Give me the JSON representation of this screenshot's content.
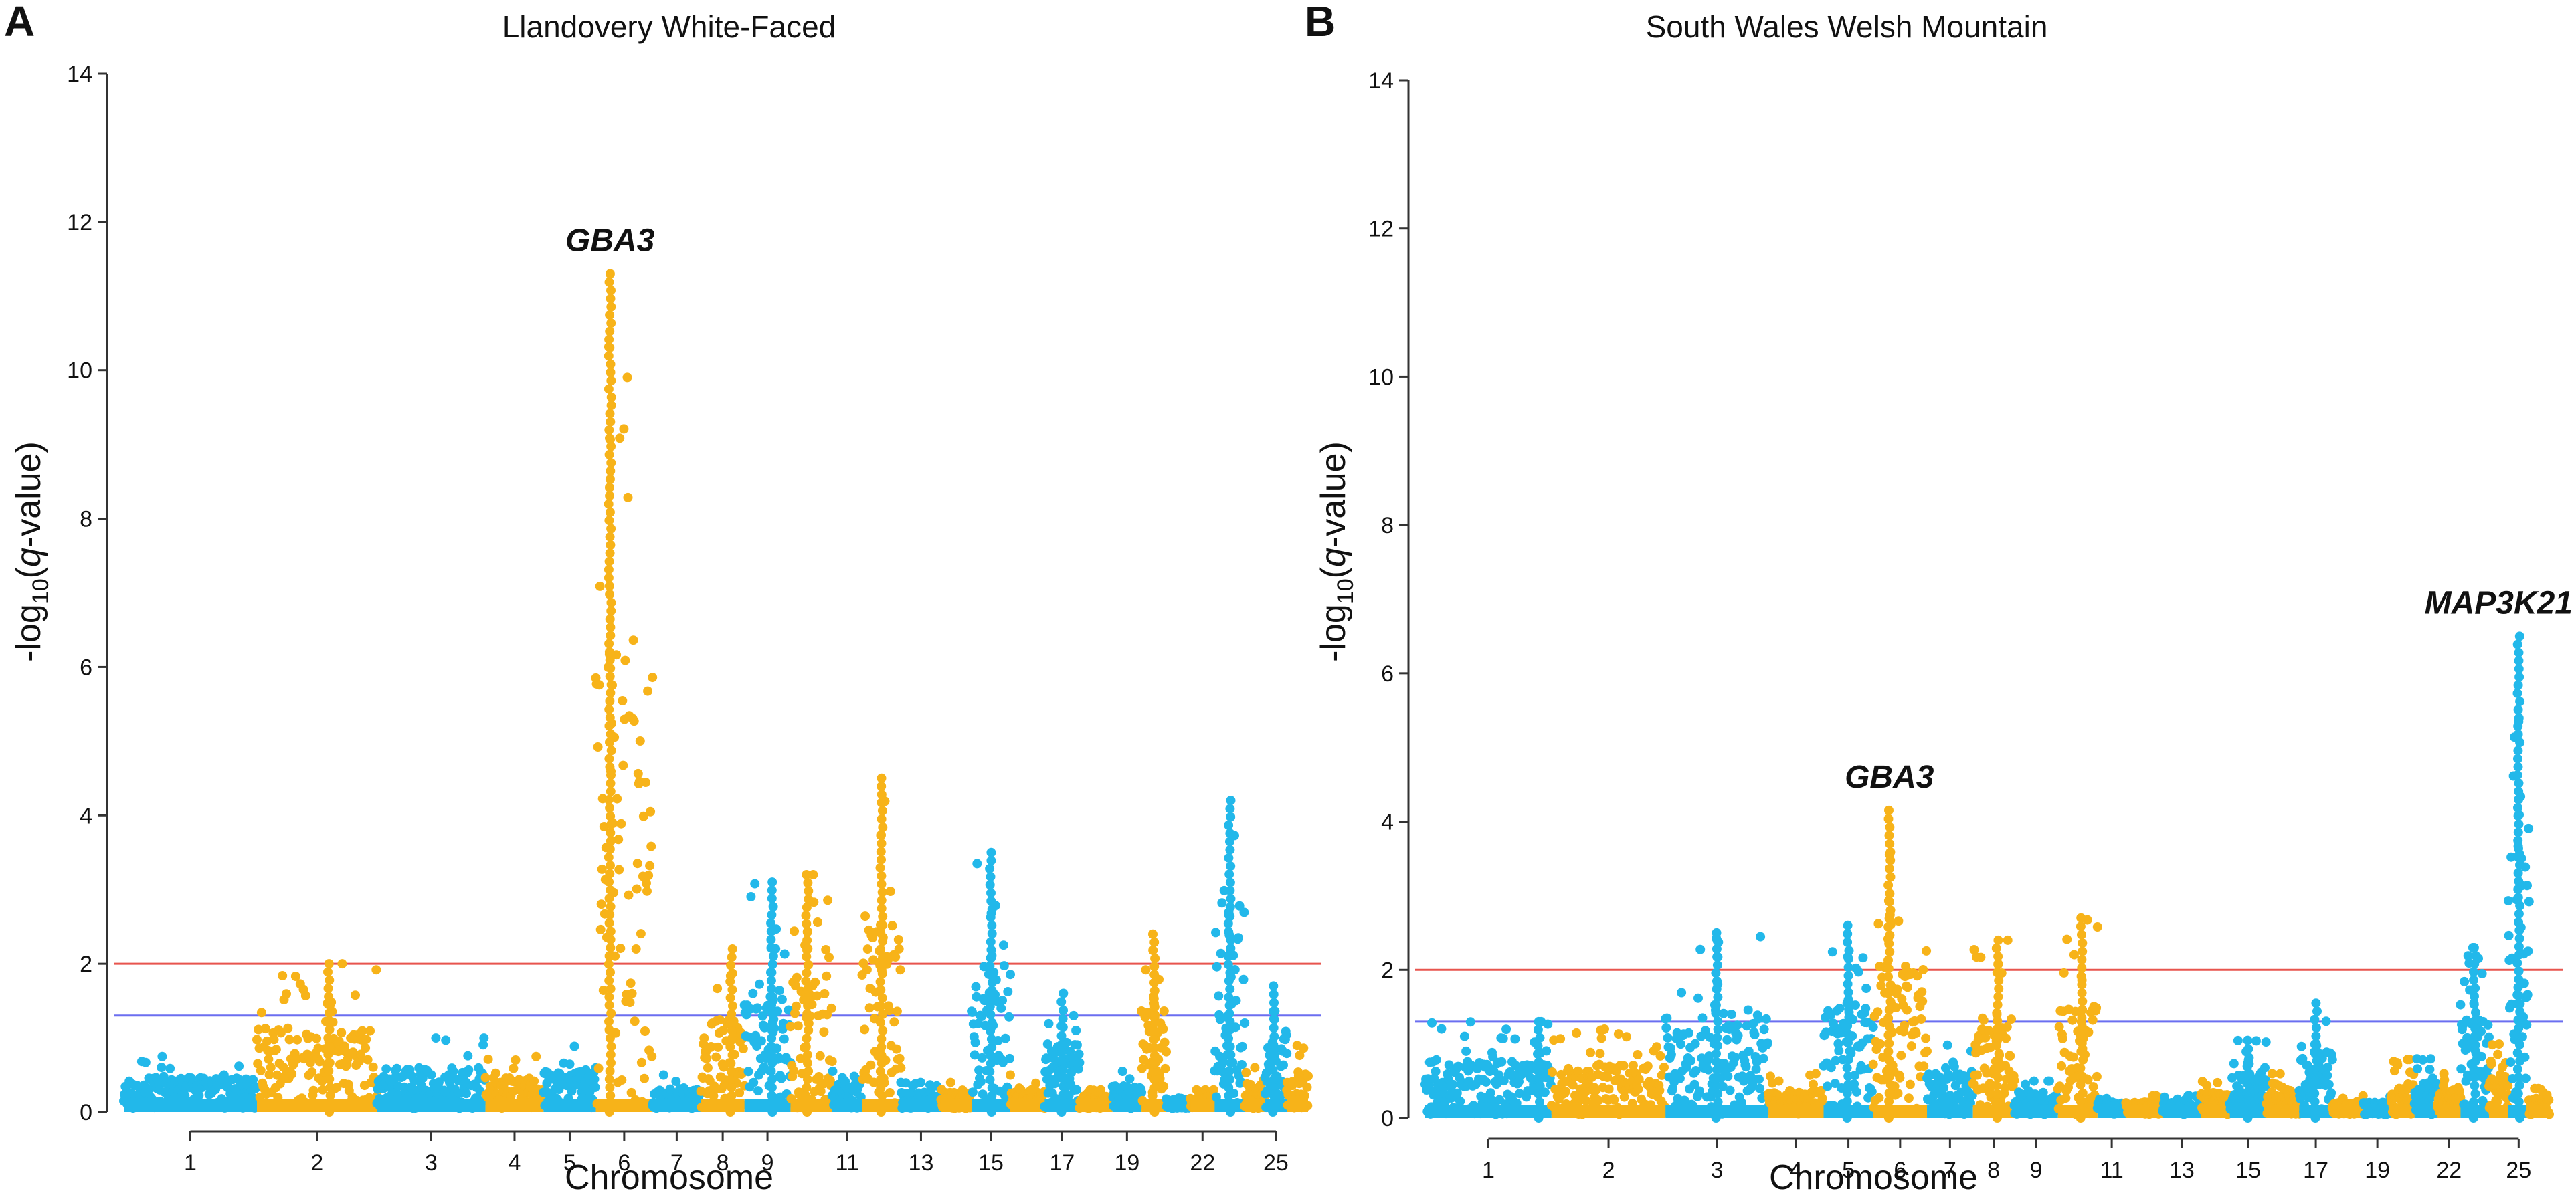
{
  "chart_data": [
    {
      "type": "scatter",
      "subtype": "manhattan",
      "panel": "A",
      "title": "Llandovery White-Faced",
      "xlabel": "Chromosome",
      "ylabel_main": "-log",
      "ylabel_sub": "10",
      "ylabel_open": "(",
      "ylabel_italic": "q",
      "ylabel_tail": "-value)",
      "ylim": [
        0,
        14
      ],
      "yticks": [
        0,
        2,
        4,
        6,
        8,
        10,
        12,
        14
      ],
      "xtick_labels": [
        "1",
        "2",
        "3",
        "4",
        "5",
        "6",
        "7",
        "8",
        "9",
        "11",
        "13",
        "15",
        "17",
        "19",
        "22",
        "25"
      ],
      "thresholds": [
        {
          "name": "red-threshold",
          "value": 2.0,
          "color": "#e8554e"
        },
        {
          "name": "blue-threshold",
          "value": 1.3,
          "color": "#6b6ff0"
        }
      ],
      "colors": [
        "#22b8ea",
        "#f7b319"
      ],
      "chromosomes": [
        {
          "chr": 1,
          "len": 275,
          "peak": 0.75
        },
        {
          "chr": 2,
          "len": 248,
          "peak": 2.0,
          "peakPos": 0.6
        },
        {
          "chr": 3,
          "len": 224,
          "peak": 1.0
        },
        {
          "chr": 4,
          "len": 120,
          "peak": 0.75
        },
        {
          "chr": 5,
          "len": 108,
          "peak": 0.9
        },
        {
          "chr": 6,
          "len": 117,
          "peak": 11.3,
          "peakPos": 0.25
        },
        {
          "chr": 7,
          "len": 100,
          "peak": 0.5
        },
        {
          "chr": 8,
          "len": 90,
          "peak": 2.2,
          "peakPos": 0.7
        },
        {
          "chr": 9,
          "len": 95,
          "peak": 3.1,
          "peakPos": 0.6
        },
        {
          "chr": 10,
          "len": 86,
          "peak": 3.2,
          "peakPos": 0.4
        },
        {
          "chr": 11,
          "len": 62,
          "peak": 0.6
        },
        {
          "chr": 12,
          "len": 80,
          "peak": 4.5,
          "peakPos": 0.5
        },
        {
          "chr": 13,
          "len": 83,
          "peak": 0.4
        },
        {
          "chr": 14,
          "len": 63,
          "peak": 0.4
        },
        {
          "chr": 15,
          "len": 80,
          "peak": 3.5,
          "peakPos": 0.5
        },
        {
          "chr": 16,
          "len": 71,
          "peak": 0.5
        },
        {
          "chr": 17,
          "len": 72,
          "peak": 1.6,
          "peakPos": 0.5
        },
        {
          "chr": 18,
          "len": 68,
          "peak": 0.3
        },
        {
          "chr": 19,
          "len": 60,
          "peak": 0.55
        },
        {
          "chr": 20,
          "len": 51,
          "peak": 2.4,
          "peakPos": 0.5
        },
        {
          "chr": 21,
          "len": 50,
          "peak": 0.25
        },
        {
          "chr": 22,
          "len": 50,
          "peak": 0.3
        },
        {
          "chr": 23,
          "len": 62,
          "peak": 4.2,
          "peakPos": 0.5
        },
        {
          "chr": 24,
          "len": 42,
          "peak": 0.6
        },
        {
          "chr": 25,
          "len": 45,
          "peak": 1.7,
          "peakPos": 0.4
        },
        {
          "chr": 26,
          "len": 44,
          "peak": 0.9
        }
      ],
      "annotations": [
        {
          "text": "GBA3",
          "chr": 6,
          "pos": 0.25,
          "y": 11.3
        }
      ]
    },
    {
      "type": "scatter",
      "subtype": "manhattan",
      "panel": "B",
      "title": "South Wales Welsh Mountain",
      "xlabel": "Chromosome",
      "ylabel_main": "-log",
      "ylabel_sub": "10",
      "ylabel_open": "(",
      "ylabel_italic": "q",
      "ylabel_tail": "-value)",
      "ylim": [
        0,
        14
      ],
      "yticks": [
        0,
        2,
        4,
        6,
        8,
        10,
        12,
        14
      ],
      "xtick_labels": [
        "1",
        "2",
        "3",
        "4",
        "5",
        "6",
        "7",
        "8",
        "9",
        "11",
        "13",
        "15",
        "17",
        "19",
        "22",
        "25"
      ],
      "thresholds": [
        {
          "name": "red-threshold",
          "value": 2.0,
          "color": "#e8554e"
        },
        {
          "name": "blue-threshold",
          "value": 1.3,
          "color": "#6b6ff0"
        }
      ],
      "colors": [
        "#22b8ea",
        "#f7b319"
      ],
      "chromosomes": [
        {
          "chr": 1,
          "len": 275,
          "peak": 1.3,
          "peakPos": 0.9
        },
        {
          "chr": 2,
          "len": 248,
          "peak": 1.2
        },
        {
          "chr": 3,
          "len": 224,
          "peak": 2.5,
          "peakPos": 0.5
        },
        {
          "chr": 4,
          "len": 120,
          "peak": 0.6
        },
        {
          "chr": 5,
          "len": 108,
          "peak": 2.6,
          "peakPos": 0.5
        },
        {
          "chr": 6,
          "len": 117,
          "peak": 4.15,
          "peakPos": 0.3
        },
        {
          "chr": 7,
          "len": 100,
          "peak": 1.0
        },
        {
          "chr": 8,
          "len": 90,
          "peak": 2.4,
          "peakPos": 0.6
        },
        {
          "chr": 9,
          "len": 95,
          "peak": 0.5
        },
        {
          "chr": 10,
          "len": 86,
          "peak": 2.7,
          "peakPos": 0.6
        },
        {
          "chr": 11,
          "len": 62,
          "peak": 0.3
        },
        {
          "chr": 12,
          "len": 80,
          "peak": 0.3
        },
        {
          "chr": 13,
          "len": 83,
          "peak": 0.3
        },
        {
          "chr": 14,
          "len": 63,
          "peak": 0.55
        },
        {
          "chr": 15,
          "len": 80,
          "peak": 1.05,
          "peakPos": 0.5
        },
        {
          "chr": 16,
          "len": 71,
          "peak": 0.6
        },
        {
          "chr": 17,
          "len": 72,
          "peak": 1.55,
          "peakPos": 0.5
        },
        {
          "chr": 18,
          "len": 68,
          "peak": 0.3
        },
        {
          "chr": 19,
          "len": 60,
          "peak": 0.3
        },
        {
          "chr": 20,
          "len": 51,
          "peak": 0.8
        },
        {
          "chr": 21,
          "len": 50,
          "peak": 0.8
        },
        {
          "chr": 22,
          "len": 50,
          "peak": 0.6
        },
        {
          "chr": 23,
          "len": 62,
          "peak": 2.3,
          "peakPos": 0.5
        },
        {
          "chr": 24,
          "len": 42,
          "peak": 1.0
        },
        {
          "chr": 25,
          "len": 45,
          "peak": 6.5,
          "peakPos": 0.5
        },
        {
          "chr": 26,
          "len": 44,
          "peak": 0.4
        }
      ],
      "annotations": [
        {
          "text": "GBA3",
          "chr": 6,
          "pos": 0.3,
          "y": 4.15
        },
        {
          "text": "MAP3K21",
          "chr": 25,
          "pos": 0.5,
          "y": 6.5
        }
      ]
    }
  ]
}
